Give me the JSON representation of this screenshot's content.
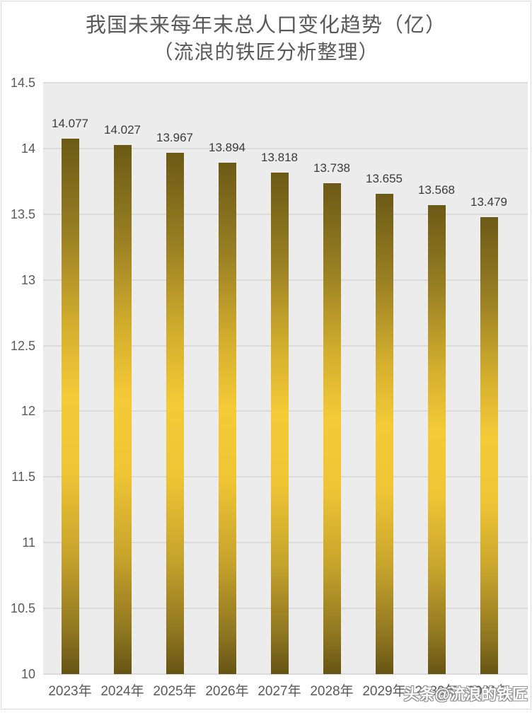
{
  "chart_data": {
    "type": "bar",
    "title": "我国未来每年末总人口变化趋势（亿）",
    "subtitle": "（流浪的铁匠分析整理）",
    "categories": [
      "2023年",
      "2024年",
      "2025年",
      "2026年",
      "2027年",
      "2028年",
      "2029年",
      "2030年",
      "2031年"
    ],
    "values": [
      14.077,
      14.027,
      13.967,
      13.894,
      13.818,
      13.738,
      13.655,
      13.568,
      13.479
    ],
    "data_labels": [
      "14.077",
      "14.027",
      "13.967",
      "13.894",
      "13.818",
      "13.738",
      "13.655",
      "13.568",
      "13.479"
    ],
    "xlabel": "",
    "ylabel": "",
    "ylim": [
      10,
      14.5
    ],
    "ytick_step": 0.5,
    "ytick_labels": [
      "14.5",
      "14",
      "13.5",
      "13",
      "12.5",
      "12",
      "11.5",
      "11",
      "10.5",
      "10"
    ],
    "grid": "horizontal",
    "legend": false
  },
  "watermark": {
    "text": "头条@流浪的铁匠"
  },
  "colors": {
    "canvas_background": "#FFFFFF",
    "frame_border": "#D8D8D8",
    "plot_background": "#ECECEC",
    "gridline": "#DBDBDB",
    "bar_gradient_dark_top": "#6B5A16",
    "bar_gradient_bright": "#F4CA37",
    "bar_gradient_dark_bottom": "#655414",
    "title_text": "#595959",
    "axis_text": "#595959",
    "data_label_text": "#3B3B3B",
    "watermark_fill": "#FDFDFD",
    "watermark_outline": "#8F8F8F"
  }
}
